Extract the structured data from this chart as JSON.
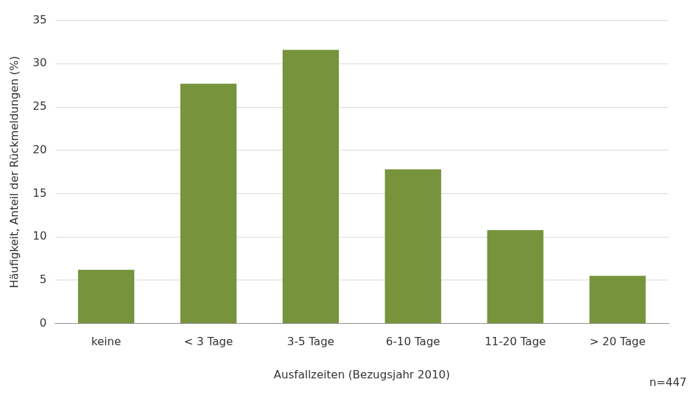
{
  "chart_data": {
    "type": "bar",
    "xlabel": "Ausfallzeiten (Bezugsjahr 2010)",
    "ylabel": "Häufigkeit, Anteil der Rückmeldungen (%)",
    "categories": [
      "keine",
      "< 3 Tage",
      "3-5 Tage",
      "6-10 Tage",
      "11-20 Tage",
      "> 20 Tage"
    ],
    "values": [
      6.2,
      27.7,
      31.6,
      17.8,
      10.8,
      5.5
    ],
    "color": "#77933c",
    "ylim": [
      0,
      35
    ],
    "yticks": [
      0,
      5,
      10,
      15,
      20,
      25,
      30,
      35
    ],
    "grid": "y",
    "legend": false,
    "annotations": [
      "n=447"
    ]
  }
}
